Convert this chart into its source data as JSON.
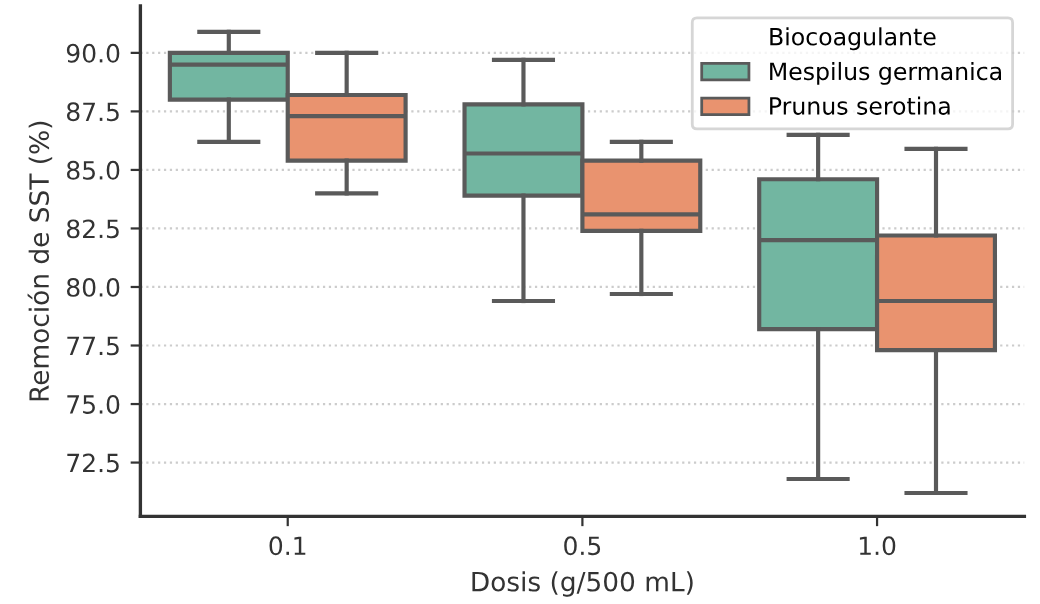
{
  "chart_data": {
    "type": "box",
    "xlabel": "Dosis (g/500 mL)",
    "ylabel": "Remoción de SST (%)",
    "categories": [
      "0.1",
      "0.5",
      "1.0"
    ],
    "legend_title": "Biocoagulante",
    "legend": "top right",
    "grid": "y",
    "line_style": "dotted",
    "ylim": [
      70.2,
      92
    ],
    "yticks": [
      {
        "value": 72.5,
        "label": "72.5"
      },
      {
        "value": 75,
        "label": "75.0"
      },
      {
        "value": 77.5,
        "label": "77.5"
      },
      {
        "value": 80,
        "label": "80.0"
      },
      {
        "value": 82.5,
        "label": "82.5"
      },
      {
        "value": 85,
        "label": "85.0"
      },
      {
        "value": 87.5,
        "label": "87.5"
      },
      {
        "value": 90,
        "label": "90.0"
      }
    ],
    "series": [
      {
        "name": "Mespilus germanica",
        "color": "#72b6a1",
        "boxes": [
          {
            "low": 86.2,
            "q1": 88.0,
            "median": 89.5,
            "q3": 90.0,
            "high": 90.9
          },
          {
            "low": 79.4,
            "q1": 83.9,
            "median": 85.7,
            "q3": 87.8,
            "high": 89.7
          },
          {
            "low": 71.8,
            "q1": 78.2,
            "median": 82.0,
            "q3": 84.6,
            "high": 86.5
          }
        ]
      },
      {
        "name": "Prunus serotina",
        "color": "#e9936f",
        "boxes": [
          {
            "low": 84.0,
            "q1": 85.4,
            "median": 87.3,
            "q3": 88.2,
            "high": 90.0
          },
          {
            "low": 79.7,
            "q1": 82.4,
            "median": 83.1,
            "q3": 85.4,
            "high": 86.2
          },
          {
            "low": 71.2,
            "q1": 77.3,
            "median": 79.4,
            "q3": 82.2,
            "high": 85.9
          }
        ]
      }
    ]
  }
}
